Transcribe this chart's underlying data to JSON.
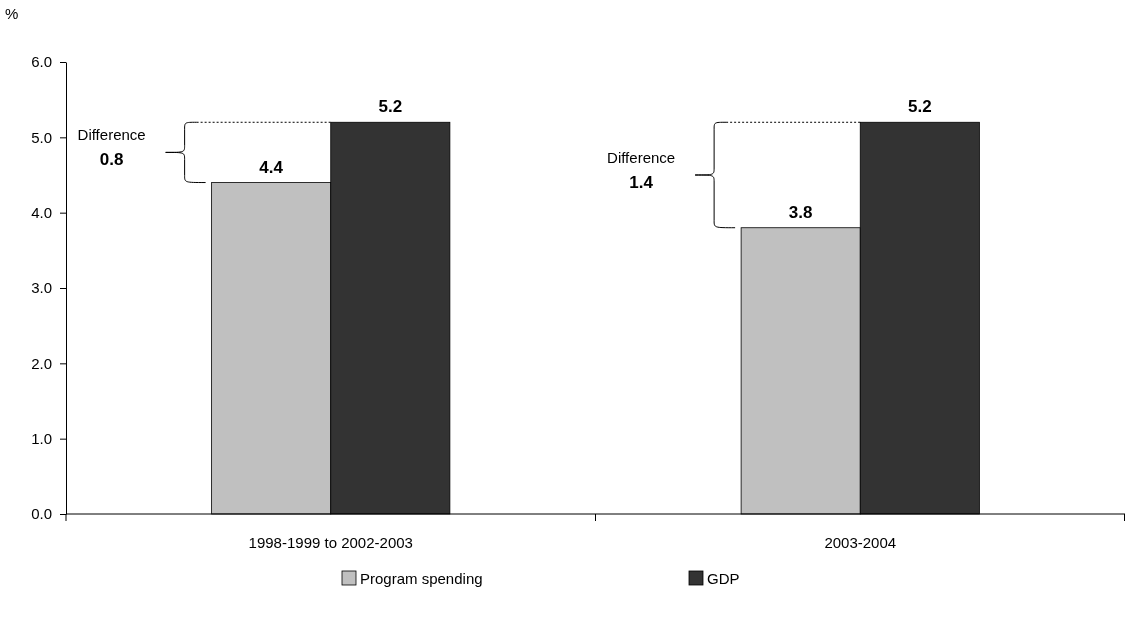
{
  "chart_data": {
    "type": "bar",
    "ylabel": "%",
    "categories": [
      "1998-1999 to 2002-2003",
      "2003-2004"
    ],
    "series": [
      {
        "name": "Program spending",
        "color": "#c0c0c0",
        "values": [
          4.4,
          3.8
        ]
      },
      {
        "name": "GDP",
        "color": "#333333",
        "values": [
          5.2,
          5.2
        ]
      }
    ],
    "ylim": [
      0,
      6
    ],
    "yticks": [
      {
        "value": 0,
        "label": "0.0"
      },
      {
        "value": 1,
        "label": "1.0"
      },
      {
        "value": 2,
        "label": "2.0"
      },
      {
        "value": 3,
        "label": "3.0"
      },
      {
        "value": 4,
        "label": "4.0"
      },
      {
        "value": 5,
        "label": "5.0"
      },
      {
        "value": 6,
        "label": "6.0"
      }
    ],
    "data_labels": true,
    "legend": "bottom",
    "annotations": [
      "Difference\n0.8",
      "Difference\n1.4"
    ]
  }
}
